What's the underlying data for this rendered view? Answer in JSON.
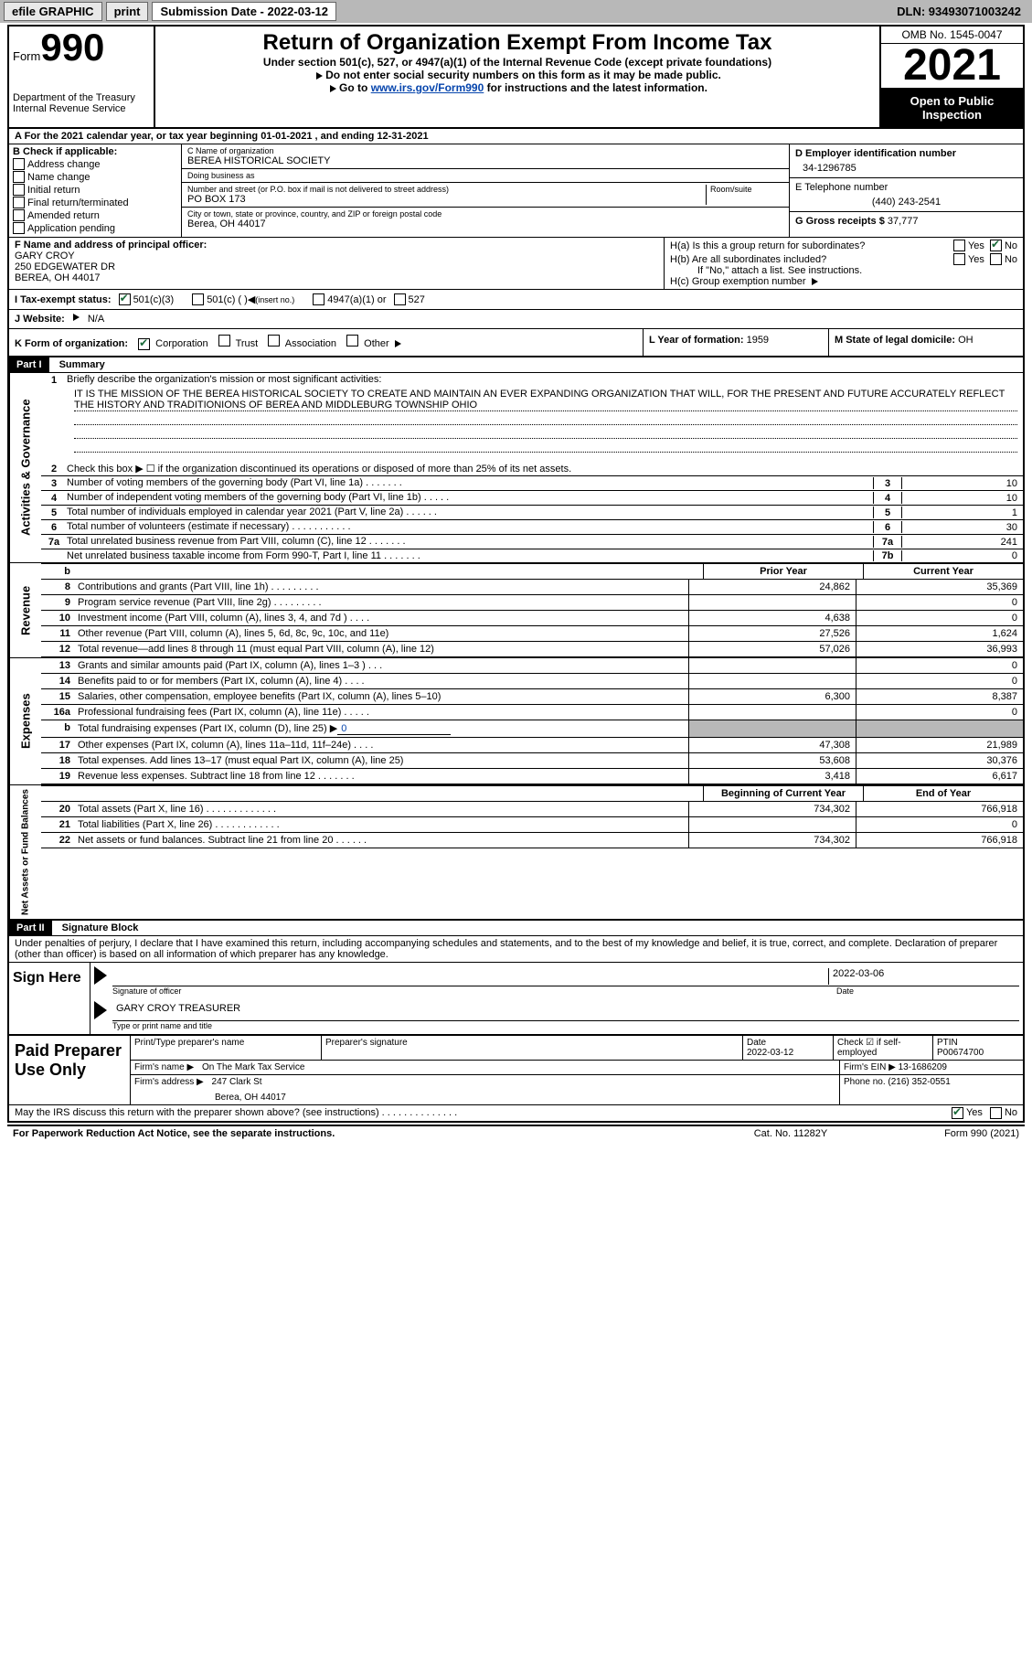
{
  "topbar": {
    "efile": "efile GRAPHIC",
    "print": "print",
    "sub_label": "Submission Date - 2022-03-12",
    "dln": "DLN: 93493071003242"
  },
  "header": {
    "form_word": "Form",
    "form_num": "990",
    "dept": "Department of the Treasury\nInternal Revenue Service",
    "title": "Return of Organization Exempt From Income Tax",
    "subtitle": "Under section 501(c), 527, or 4947(a)(1) of the Internal Revenue Code (except private foundations)",
    "note1": "Do not enter social security numbers on this form as it may be made public.",
    "note2_pre": "Go to ",
    "note2_link": "www.irs.gov/Form990",
    "note2_post": " for instructions and the latest information.",
    "omb": "OMB No. 1545-0047",
    "year": "2021",
    "open": "Open to Public Inspection"
  },
  "row_a": "A For the 2021 calendar year, or tax year beginning 01-01-2021    , and ending 12-31-2021",
  "b": {
    "label": "B Check if applicable:",
    "opts": [
      "Address change",
      "Name change",
      "Initial return",
      "Final return/terminated",
      "Amended return",
      "Application pending"
    ]
  },
  "c": {
    "name_label": "C Name of organization",
    "name": "BEREA HISTORICAL SOCIETY",
    "dba_label": "Doing business as",
    "dba": "",
    "addr_label": "Number and street (or P.O. box if mail is not delivered to street address)",
    "room_label": "Room/suite",
    "addr": "PO BOX 173",
    "city_label": "City or town, state or province, country, and ZIP or foreign postal code",
    "city": "Berea, OH  44017"
  },
  "d": {
    "ein_label": "D Employer identification number",
    "ein": "34-1296785",
    "tel_label": "E Telephone number",
    "tel": "(440) 243-2541",
    "gross_label": "G Gross receipts $",
    "gross": "37,777"
  },
  "f": {
    "label": "F  Name and address of principal officer:",
    "name": "GARY CROY",
    "addr1": "250 EDGEWATER DR",
    "addr2": "BEREA, OH  44017"
  },
  "h": {
    "ha": "H(a)  Is this a group return for subordinates?",
    "hb": "H(b)  Are all subordinates included?",
    "hb_note": "If \"No,\" attach a list. See instructions.",
    "hc": "H(c)  Group exemption number",
    "yes": "Yes",
    "no": "No"
  },
  "i": {
    "label": "I  Tax-exempt status:",
    "o1": "501(c)(3)",
    "o2": "501(c) (   )",
    "o2b": "(insert no.)",
    "o3": "4947(a)(1) or",
    "o4": "527"
  },
  "j": {
    "label": "J  Website:",
    "val": "N/A"
  },
  "k": {
    "label": "K Form of organization:",
    "o1": "Corporation",
    "o2": "Trust",
    "o3": "Association",
    "o4": "Other"
  },
  "l": {
    "label": "L Year of formation:",
    "val": "1959"
  },
  "m": {
    "label": "M State of legal domicile:",
    "val": "OH"
  },
  "part1": {
    "tag": "Part I",
    "title": "Summary",
    "line1a": "Briefly describe the organization's mission or most significant activities:",
    "mission": "IT IS THE MISSION OF THE BEREA HISTORICAL SOCIETY TO CREATE AND MAINTAIN AN EVER EXPANDING ORGANIZATION THAT WILL, FOR THE PRESENT AND FUTURE ACCURATELY REFLECT THE HISTORY AND TRADITIONIONS OF BEREA AND MIDDLEBURG TOWNSHIP OHIO",
    "line2": "Check this box ▶ ☐  if the organization discontinued its operations or disposed of more than 25% of its net assets.",
    "gov": {
      "l3": "Number of voting members of the governing body (Part VI, line 1a)   .    .    .    .    .    .    .",
      "l4": "Number of independent voting members of the governing body (Part VI, line 1b)   .    .    .    .    .",
      "l5": "Total number of individuals employed in calendar year 2021 (Part V, line 2a)   .    .    .    .    .    .",
      "l6": "Total number of volunteers (estimate if necessary)    .    .    .    .    .    .    .    .    .    .    .",
      "l7a": "Total unrelated business revenue from Part VIII, column (C), line 12   .    .    .    .    .    .    .",
      "l7b": "Net unrelated business taxable income from Form 990-T, Part I, line 11   .    .    .    .    .    .    .",
      "v3": "10",
      "v4": "10",
      "v5": "1",
      "v6": "30",
      "v7a": "241",
      "v7b": "0"
    },
    "hdr_b": "b",
    "prior_h": "Prior Year",
    "curr_h": "Current Year",
    "rev": [
      {
        "n": "8",
        "t": "Contributions and grants (Part VIII, line 1h)    .    .    .    .    .    .    .    .    .",
        "p": "24,862",
        "c": "35,369"
      },
      {
        "n": "9",
        "t": "Program service revenue (Part VIII, line 2g)    .    .    .    .    .    .    .    .    .",
        "p": "",
        "c": "0"
      },
      {
        "n": "10",
        "t": "Investment income (Part VIII, column (A), lines 3, 4, and 7d )    .    .    .    .",
        "p": "4,638",
        "c": "0"
      },
      {
        "n": "11",
        "t": "Other revenue (Part VIII, column (A), lines 5, 6d, 8c, 9c, 10c, and 11e)",
        "p": "27,526",
        "c": "1,624"
      },
      {
        "n": "12",
        "t": "Total revenue—add lines 8 through 11 (must equal Part VIII, column (A), line 12)",
        "p": "57,026",
        "c": "36,993"
      }
    ],
    "exp": [
      {
        "n": "13",
        "t": "Grants and similar amounts paid (Part IX, column (A), lines 1–3 )    .    .    .",
        "p": "",
        "c": "0"
      },
      {
        "n": "14",
        "t": "Benefits paid to or for members (Part IX, column (A), line 4)    .    .    .    .",
        "p": "",
        "c": "0"
      },
      {
        "n": "15",
        "t": "Salaries, other compensation, employee benefits (Part IX, column (A), lines 5–10)",
        "p": "6,300",
        "c": "8,387"
      },
      {
        "n": "16a",
        "t": "Professional fundraising fees (Part IX, column (A), line 11e)    .    .    .    .    .",
        "p": "",
        "c": "0"
      }
    ],
    "exp_b": {
      "n": "b",
      "t": "Total fundraising expenses (Part IX, column (D), line 25) ▶",
      "v": "0"
    },
    "exp2": [
      {
        "n": "17",
        "t": "Other expenses (Part IX, column (A), lines 11a–11d, 11f–24e)    .    .    .    .",
        "p": "47,308",
        "c": "21,989"
      },
      {
        "n": "18",
        "t": "Total expenses. Add lines 13–17 (must equal Part IX, column (A), line 25)",
        "p": "53,608",
        "c": "30,376"
      },
      {
        "n": "19",
        "t": "Revenue less expenses. Subtract line 18 from line 12   .    .    .    .    .    .    .",
        "p": "3,418",
        "c": "6,617"
      }
    ],
    "na_hdr1": "Beginning of Current Year",
    "na_hdr2": "End of Year",
    "na": [
      {
        "n": "20",
        "t": "Total assets (Part X, line 16)   .    .    .    .    .    .    .    .    .    .    .    .    .",
        "p": "734,302",
        "c": "766,918"
      },
      {
        "n": "21",
        "t": "Total liabilities (Part X, line 26)   .    .    .    .    .    .    .    .    .    .    .    .",
        "p": "",
        "c": "0"
      },
      {
        "n": "22",
        "t": "Net assets or fund balances. Subtract line 21 from line 20   .    .    .    .    .    .",
        "p": "734,302",
        "c": "766,918"
      }
    ],
    "side_gov": "Activities & Governance",
    "side_rev": "Revenue",
    "side_exp": "Expenses",
    "side_na": "Net Assets or Fund Balances"
  },
  "part2": {
    "tag": "Part II",
    "title": "Signature Block",
    "decl": "Under penalties of perjury, I declare that I have examined this return, including accompanying schedules and statements, and to the best of my knowledge and belief, it is true, correct, and complete. Declaration of preparer (other than officer) is based on all information of which preparer has any knowledge.",
    "sign_here": "Sign Here",
    "sig_officer": "Signature of officer",
    "date_lbl": "Date",
    "sig_date": "2022-03-06",
    "officer_name": "GARY CROY  TREASURER",
    "type_name": "Type or print name and title",
    "paid": "Paid Preparer Use Only",
    "pp_name_lbl": "Print/Type preparer's name",
    "pp_sig_lbl": "Preparer's signature",
    "pp_date_lbl": "Date",
    "pp_date": "2022-03-12",
    "pp_check_lbl": "Check ☑ if self-employed",
    "ptin_lbl": "PTIN",
    "ptin": "P00674700",
    "firm_name_lbl": "Firm's name    ▶",
    "firm_name": "On The Mark Tax Service",
    "firm_ein_lbl": "Firm's EIN ▶",
    "firm_ein": "13-1686209",
    "firm_addr_lbl": "Firm's address ▶",
    "firm_addr1": "247 Clark St",
    "firm_addr2": "Berea, OH  44017",
    "phone_lbl": "Phone no.",
    "phone": "(216) 352-0551",
    "discuss": "May the IRS discuss this return with the preparer shown above? (see instructions)    .    .    .    .    .    .    .    .    .    .    .    .    .    .",
    "yes": "Yes",
    "no": "No"
  },
  "footer": {
    "left": "For Paperwork Reduction Act Notice, see the separate instructions.",
    "mid": "Cat. No. 11282Y",
    "right": "Form 990 (2021)"
  }
}
